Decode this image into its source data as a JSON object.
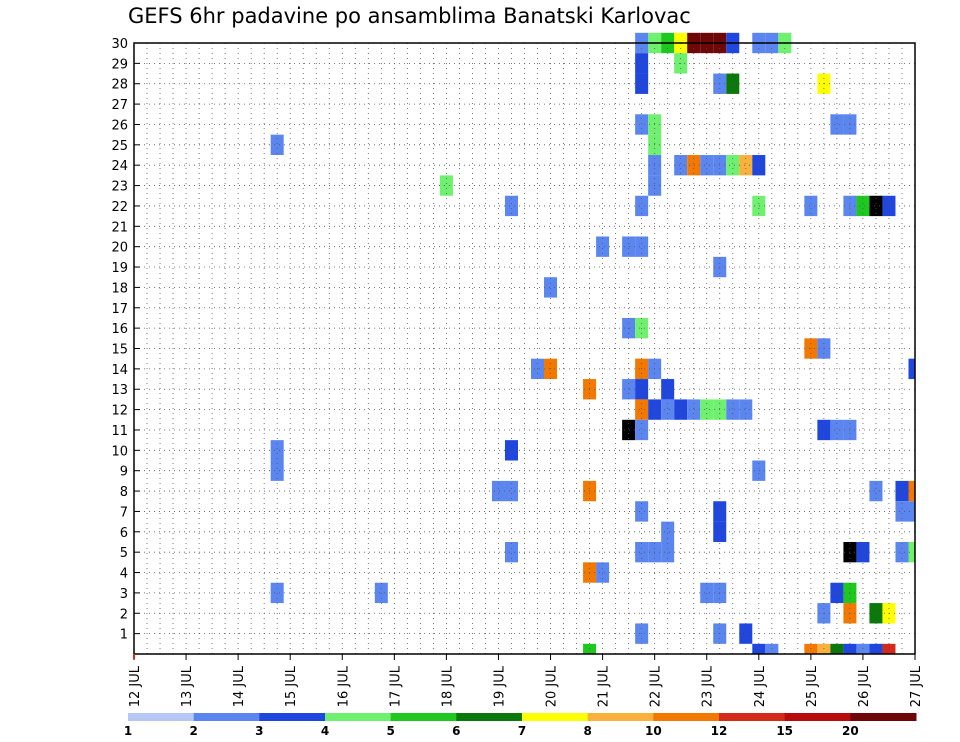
{
  "chart_data": {
    "type": "heatmap",
    "title": "GEFS 6hr padavine po ansamblima Banatski Karlovac",
    "x_tick_labels": [
      "12 JUL",
      "13 JUL",
      "14 JUL",
      "15 JUL",
      "16 JUL",
      "17 JUL",
      "18 JUL",
      "19 JUL",
      "20 JUL",
      "21 JUL",
      "22 JUL",
      "23 JUL",
      "24 JUL",
      "25 JUL",
      "26 JUL",
      "27 JUL"
    ],
    "y_tick_labels": [
      "1",
      "2",
      "3",
      "4",
      "5",
      "6",
      "7",
      "8",
      "9",
      "10",
      "11",
      "12",
      "13",
      "14",
      "15",
      "16",
      "17",
      "18",
      "19",
      "20",
      "21",
      "22",
      "23",
      "24",
      "25",
      "26",
      "27",
      "28",
      "29",
      "30"
    ],
    "x_unit": "6-hour step from 12 JUL",
    "ylim": [
      0,
      30
    ],
    "xlim": [
      0,
      60
    ],
    "grid": true,
    "colorbar": {
      "labels": [
        "1",
        "2",
        "3",
        "4",
        "5",
        "6",
        "7",
        "8",
        "10",
        "12",
        "15",
        "20"
      ],
      "colors": [
        "#b8c8f4",
        "#5b85ef",
        "#1f47e0",
        "#6ff06f",
        "#1ec81e",
        "#0a780a",
        "#ffff00",
        "#f9b13b",
        "#f27800",
        "#d42a1a",
        "#b80c0c",
        "#6e0808"
      ]
    },
    "cells": [
      [
        40,
        30,
        3
      ],
      [
        41,
        30,
        4
      ],
      [
        42,
        30,
        6
      ],
      [
        43,
        30,
        11
      ],
      [
        44,
        30,
        11
      ],
      [
        45,
        30,
        11
      ],
      [
        46,
        30,
        2
      ],
      [
        48,
        30,
        1
      ],
      [
        49,
        30,
        1
      ],
      [
        50,
        30,
        3
      ],
      [
        39,
        30,
        1
      ],
      [
        39,
        29,
        2
      ],
      [
        42,
        29,
        3
      ],
      [
        39,
        28,
        2
      ],
      [
        45,
        28,
        1
      ],
      [
        46,
        28,
        5
      ],
      [
        53,
        28,
        6
      ],
      [
        39,
        26,
        1
      ],
      [
        40,
        26,
        3
      ],
      [
        54,
        26,
        1
      ],
      [
        55,
        26,
        1
      ],
      [
        11,
        25,
        1
      ],
      [
        40,
        25,
        3
      ],
      [
        40,
        24,
        1
      ],
      [
        42,
        24,
        1
      ],
      [
        43,
        24,
        8
      ],
      [
        44,
        24,
        1
      ],
      [
        45,
        24,
        1
      ],
      [
        46,
        24,
        3
      ],
      [
        47,
        24,
        7
      ],
      [
        48,
        24,
        2
      ],
      [
        24,
        23,
        3
      ],
      [
        40,
        23,
        1
      ],
      [
        29,
        22,
        1
      ],
      [
        39,
        22,
        1
      ],
      [
        48,
        22,
        3
      ],
      [
        52,
        22,
        1
      ],
      [
        55,
        22,
        1
      ],
      [
        56,
        22,
        4
      ],
      [
        57,
        22,
        12
      ],
      [
        58,
        22,
        2
      ],
      [
        36,
        20,
        1
      ],
      [
        38,
        20,
        1
      ],
      [
        39,
        20,
        1
      ],
      [
        45,
        19,
        1
      ],
      [
        32,
        18,
        1
      ],
      [
        38,
        16,
        1
      ],
      [
        39,
        16,
        3
      ],
      [
        52,
        15,
        8
      ],
      [
        53,
        15,
        1
      ],
      [
        31,
        14,
        1
      ],
      [
        32,
        14,
        8
      ],
      [
        39,
        14,
        8
      ],
      [
        40,
        14,
        1
      ],
      [
        60,
        14,
        2
      ],
      [
        35,
        13,
        8
      ],
      [
        38,
        13,
        1
      ],
      [
        39,
        13,
        2
      ],
      [
        41,
        13,
        2
      ],
      [
        39,
        12,
        8
      ],
      [
        40,
        12,
        2
      ],
      [
        41,
        12,
        1
      ],
      [
        42,
        12,
        2
      ],
      [
        43,
        12,
        1
      ],
      [
        44,
        12,
        3
      ],
      [
        45,
        12,
        3
      ],
      [
        46,
        12,
        1
      ],
      [
        47,
        12,
        1
      ],
      [
        38,
        11,
        12
      ],
      [
        39,
        11,
        1
      ],
      [
        53,
        11,
        2
      ],
      [
        54,
        11,
        1
      ],
      [
        55,
        11,
        1
      ],
      [
        11,
        10,
        1
      ],
      [
        29,
        10,
        2
      ],
      [
        11,
        9,
        1
      ],
      [
        48,
        9,
        1
      ],
      [
        28,
        8,
        1
      ],
      [
        29,
        8,
        1
      ],
      [
        35,
        8,
        8
      ],
      [
        57,
        8,
        1
      ],
      [
        59,
        8,
        2
      ],
      [
        60,
        8,
        8
      ],
      [
        39,
        7,
        1
      ],
      [
        45,
        7,
        2
      ],
      [
        59,
        7,
        1
      ],
      [
        60,
        7,
        1
      ],
      [
        41,
        6,
        1
      ],
      [
        45,
        6,
        2
      ],
      [
        29,
        5,
        1
      ],
      [
        39,
        5,
        1
      ],
      [
        40,
        5,
        1
      ],
      [
        41,
        5,
        1
      ],
      [
        55,
        5,
        12
      ],
      [
        56,
        5,
        2
      ],
      [
        59,
        5,
        1
      ],
      [
        60,
        5,
        3
      ],
      [
        35,
        4,
        8
      ],
      [
        36,
        4,
        1
      ],
      [
        11,
        3,
        1
      ],
      [
        19,
        3,
        1
      ],
      [
        44,
        3,
        1
      ],
      [
        45,
        3,
        1
      ],
      [
        54,
        3,
        2
      ],
      [
        55,
        3,
        4
      ],
      [
        53,
        2,
        1
      ],
      [
        55,
        2,
        8
      ],
      [
        57,
        2,
        5
      ],
      [
        58,
        2,
        6
      ],
      [
        39,
        1,
        1
      ],
      [
        45,
        1,
        1
      ],
      [
        47,
        1,
        2
      ],
      [
        35,
        0,
        4
      ],
      [
        48,
        0,
        2
      ],
      [
        49,
        0,
        1
      ],
      [
        52,
        0,
        8
      ],
      [
        53,
        0,
        7
      ],
      [
        54,
        0,
        5
      ],
      [
        55,
        0,
        2
      ],
      [
        56,
        0,
        1
      ],
      [
        57,
        0,
        2
      ],
      [
        58,
        0,
        9
      ]
    ]
  }
}
